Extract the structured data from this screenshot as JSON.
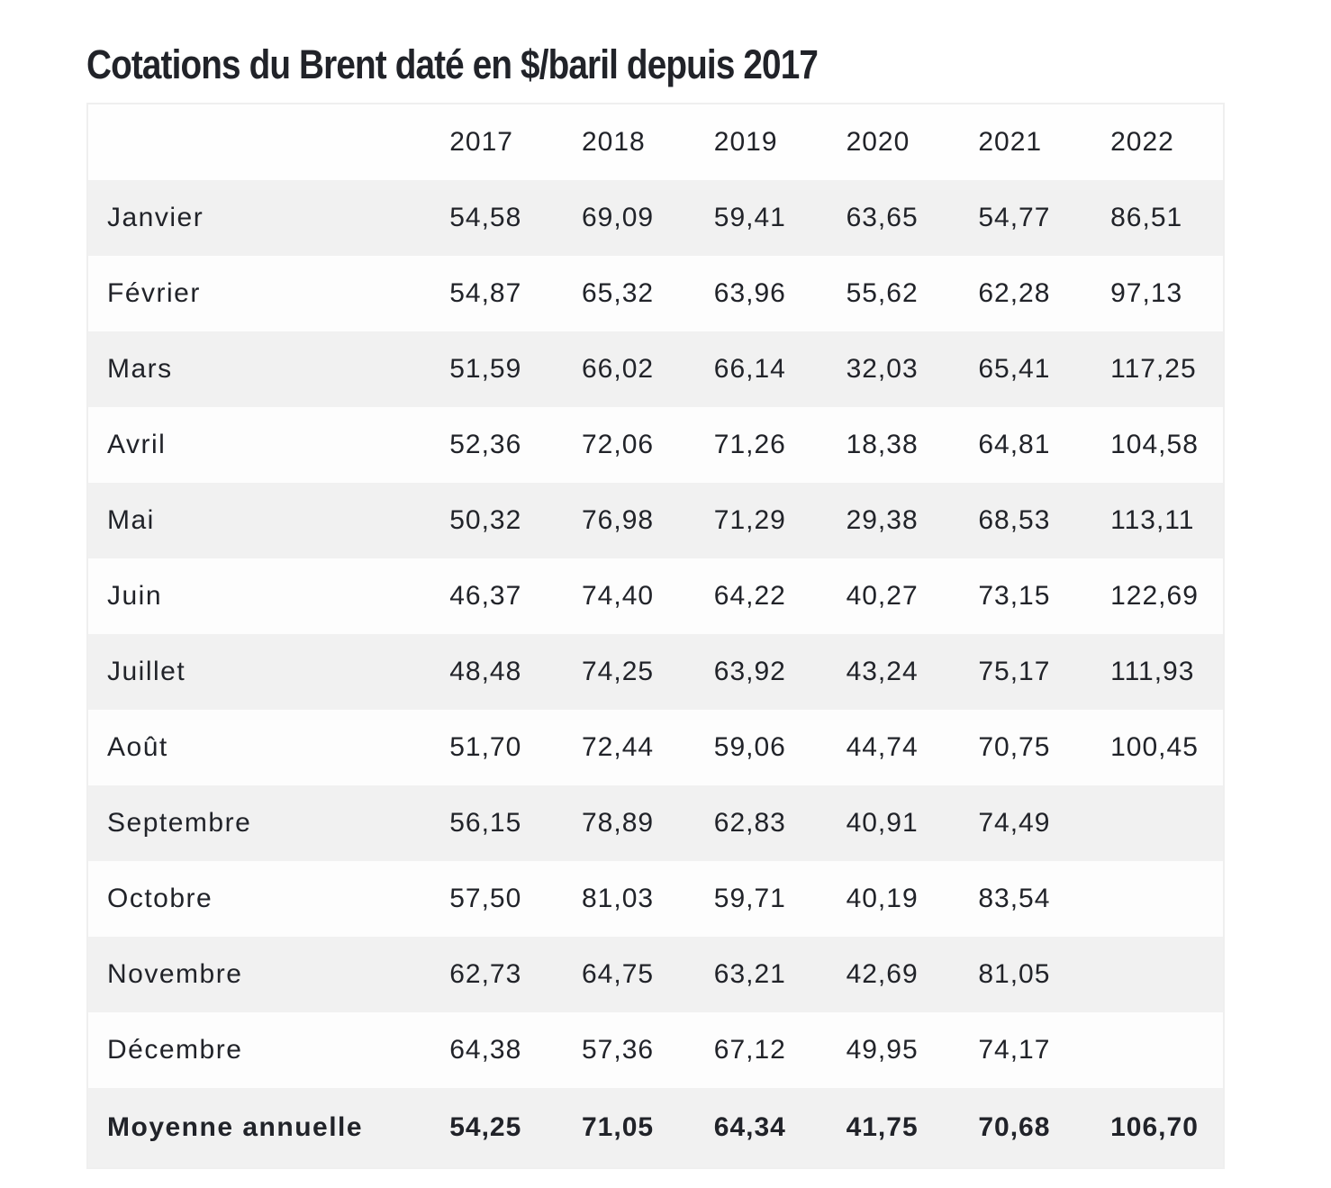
{
  "title": "Cotations du Brent daté en $/baril depuis 2017",
  "table": {
    "columns": [
      "",
      "2017",
      "2018",
      "2019",
      "2020",
      "2021",
      "2022"
    ],
    "rows": [
      {
        "label": "Janvier",
        "values": [
          "54,58",
          "69,09",
          "59,41",
          "63,65",
          "54,77",
          "86,51"
        ]
      },
      {
        "label": "Février",
        "values": [
          "54,87",
          "65,32",
          "63,96",
          "55,62",
          "62,28",
          "97,13"
        ]
      },
      {
        "label": "Mars",
        "values": [
          "51,59",
          "66,02",
          "66,14",
          "32,03",
          "65,41",
          "117,25"
        ]
      },
      {
        "label": "Avril",
        "values": [
          "52,36",
          "72,06",
          "71,26",
          "18,38",
          "64,81",
          "104,58"
        ]
      },
      {
        "label": "Mai",
        "values": [
          "50,32",
          "76,98",
          "71,29",
          "29,38",
          "68,53",
          "113,11"
        ]
      },
      {
        "label": "Juin",
        "values": [
          "46,37",
          "74,40",
          "64,22",
          "40,27",
          "73,15",
          "122,69"
        ]
      },
      {
        "label": "Juillet",
        "values": [
          "48,48",
          "74,25",
          "63,92",
          "43,24",
          "75,17",
          "111,93"
        ]
      },
      {
        "label": "Août",
        "values": [
          "51,70",
          "72,44",
          "59,06",
          "44,74",
          "70,75",
          "100,45"
        ]
      },
      {
        "label": "Septembre",
        "values": [
          "56,15",
          "78,89",
          "62,83",
          "40,91",
          "74,49",
          ""
        ]
      },
      {
        "label": "Octobre",
        "values": [
          "57,50",
          "81,03",
          "59,71",
          "40,19",
          "83,54",
          ""
        ]
      },
      {
        "label": "Novembre",
        "values": [
          "62,73",
          "64,75",
          "63,21",
          "42,69",
          "81,05",
          ""
        ]
      },
      {
        "label": "Décembre",
        "values": [
          "64,38",
          "57,36",
          "67,12",
          "49,95",
          "74,17",
          ""
        ]
      }
    ],
    "total": {
      "label": "Moyenne annuelle",
      "values": [
        "54,25",
        "71,05",
        "64,34",
        "41,75",
        "70,68",
        "106,70"
      ]
    }
  },
  "colors": {
    "text": "#212329",
    "row_stripe": "#f1f1f1",
    "row_plain": "#fdfdfd",
    "border": "#efefef"
  }
}
